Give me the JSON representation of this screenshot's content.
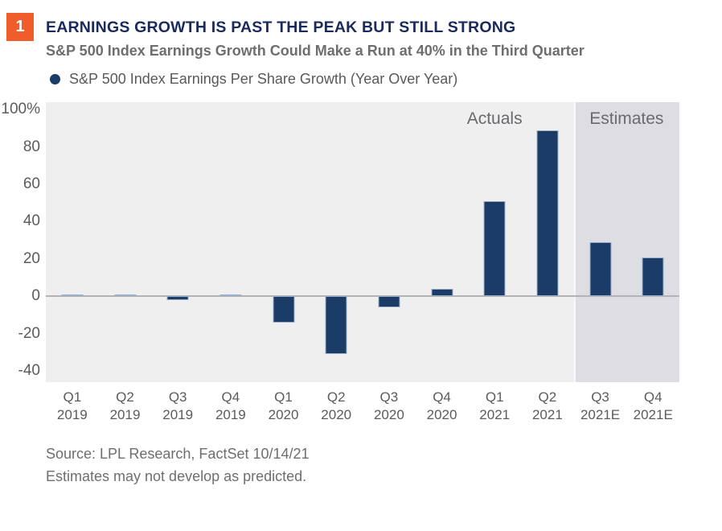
{
  "figure": {
    "number": "1",
    "title": "EARNINGS GROWTH IS PAST THE PEAK BUT STILL STRONG",
    "subtitle": "S&P 500 Index Earnings Growth Could Make a Run at 40% in the Third Quarter",
    "legend_label": "S&P 500 Index Earnings Per Share Growth (Year Over Year)",
    "source": "Source: LPL Research, FactSet  10/14/21",
    "disclaimer": "Estimates may not develop as predicted."
  },
  "colors": {
    "accent_orange": "#F05C2C",
    "title_navy": "#1B2A5C",
    "bar_navy": "#1C3C68",
    "bar_edge": "#9DB0C9",
    "subtitle_gray": "#6D6E71",
    "axis_gray": "#5A5B5E",
    "plot_background": "#EFEFEF",
    "estimates_background": "#DEDDE3",
    "zero_line_gray": "#B3B3B6"
  },
  "chart_data": {
    "type": "bar",
    "title": "S&P 500 Index Earnings Per Share Growth (Year Over Year)",
    "categories": [
      "Q1 2019",
      "Q2 2019",
      "Q3 2019",
      "Q4 2019",
      "Q1 2020",
      "Q2 2020",
      "Q3 2020",
      "Q4 2020",
      "Q1 2021",
      "Q2 2021",
      "Q3 2021E",
      "Q4 2021E"
    ],
    "values": [
      1,
      1,
      -2,
      1,
      -14,
      -31,
      -6,
      4,
      51,
      89,
      29,
      21
    ],
    "unit": "%",
    "yticks": [
      {
        "label": "100%",
        "value": 100
      },
      {
        "label": "80",
        "value": 80
      },
      {
        "label": "60",
        "value": 60
      },
      {
        "label": "40",
        "value": 40
      },
      {
        "label": "20",
        "value": 20
      },
      {
        "label": "0",
        "value": 0
      },
      {
        "label": "-20",
        "value": -20
      },
      {
        "label": "-40",
        "value": -40
      }
    ],
    "ylim": [
      -46,
      104
    ],
    "grid": false,
    "zero_line": true,
    "legend_position": "top-left",
    "annotations": [
      {
        "label": "Actuals",
        "region": "actual"
      },
      {
        "label": "Estimates",
        "region": "estimate"
      }
    ],
    "estimate_start_index": 10
  }
}
